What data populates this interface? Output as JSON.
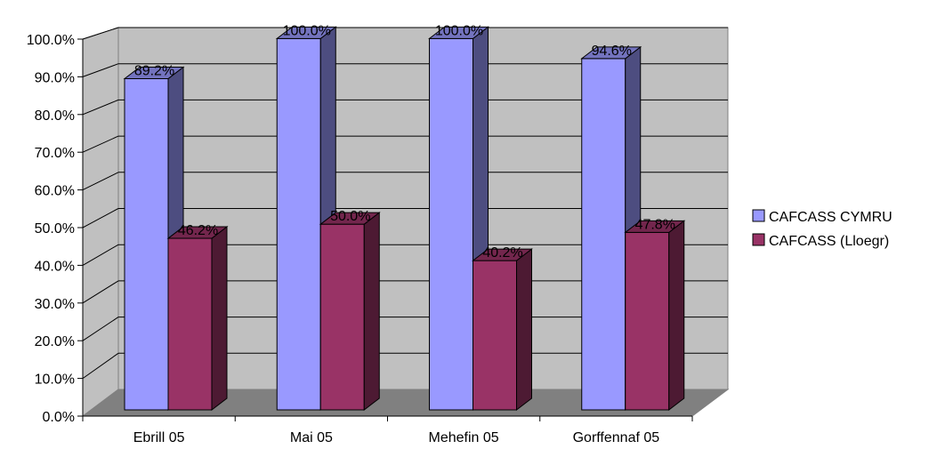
{
  "chart_data": {
    "type": "bar",
    "title": "",
    "xlabel": "",
    "ylabel": "",
    "categories": [
      "Ebrill 05",
      "Mai 05",
      "Mehefin 05",
      "Gorffennaf 05"
    ],
    "series": [
      {
        "name": "CAFCASS CYMRU",
        "values": [
          89.2,
          100.0,
          100.0,
          94.6
        ],
        "labels": [
          "89.2%",
          "100.0%",
          "100.0%",
          "94.6%"
        ],
        "color": "#9999FF"
      },
      {
        "name": "CAFCASS (Lloegr)",
        "values": [
          46.2,
          50.0,
          40.2,
          47.8
        ],
        "labels": [
          "46.2%",
          "50.0%",
          "40.2%",
          "47.8%"
        ],
        "color": "#993366"
      }
    ],
    "ylim": [
      0,
      100
    ],
    "yticks": [
      0,
      10,
      20,
      30,
      40,
      50,
      60,
      70,
      80,
      90,
      100
    ],
    "ytick_labels": [
      "0.0%",
      "10.0%",
      "20.0%",
      "30.0%",
      "40.0%",
      "50.0%",
      "60.0%",
      "70.0%",
      "80.0%",
      "90.0%",
      "100.0%"
    ],
    "grid": true,
    "three_d": true,
    "legend_position": "right",
    "wall_color": "#C0C0C0",
    "floor_color": "#808080"
  }
}
